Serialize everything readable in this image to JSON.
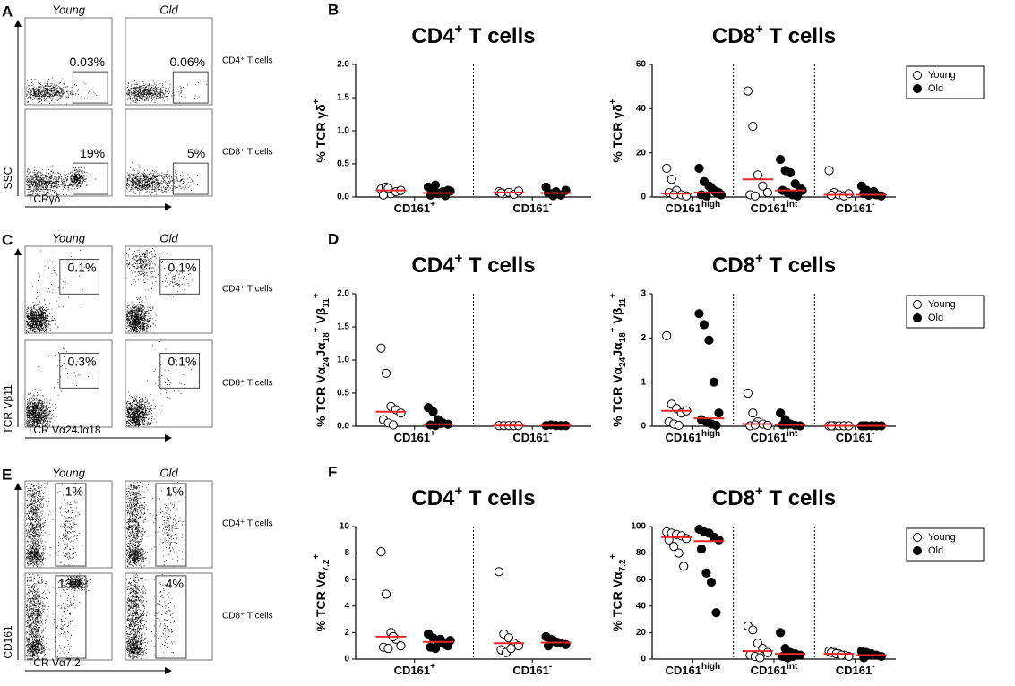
{
  "chart_data": [
    {
      "type": "dot",
      "panel": "B",
      "title": {
        "main": "CD4",
        "sup": "+",
        "rest": " T cells"
      },
      "ylabel": [
        {
          "t": "% TCR γδ"
        },
        {
          "t": "+",
          "shift": "super"
        }
      ],
      "categories": [
        {
          "text": "CD161",
          "sup": "+"
        },
        {
          "text": "CD161",
          "sup": "-"
        }
      ],
      "ylim": [
        0,
        2
      ],
      "yticks": [
        {
          "value": 0,
          "label": "0.0"
        },
        0.5,
        {
          "value": 1,
          "label": "1.0"
        },
        1.5,
        {
          "value": 2,
          "label": "2.0"
        }
      ],
      "legend": false,
      "median_color": "#e8262a",
      "series": [
        {
          "name": "Young",
          "color": "#000000",
          "filled": false,
          "values": [
            [
              0.12,
              0.15,
              0.05,
              0.08,
              0.1,
              0.03,
              0.13
            ],
            [
              0.08,
              0.05,
              0.07,
              0.04,
              0.09,
              0.06
            ]
          ],
          "medians": [
            0.1,
            0.07
          ]
        },
        {
          "name": "Old",
          "color": "#000000",
          "filled": true,
          "values": [
            [
              0.15,
              0.12,
              0.05,
              0.08,
              0.1,
              0.03,
              0.18,
              0.06,
              0.02,
              0.09
            ],
            [
              0.15,
              0.05,
              0.08,
              0.03,
              0.1,
              0.06,
              0.02
            ]
          ],
          "medians": [
            0.06,
            0.06
          ]
        }
      ]
    },
    {
      "type": "dot",
      "title": {
        "main": "CD8",
        "sup": "+",
        "rest": " T cells"
      },
      "ylabel": [
        {
          "t": "% TCR γδ"
        },
        {
          "t": "+",
          "shift": "super"
        }
      ],
      "categories": [
        {
          "text": "CD161",
          "sup": "high"
        },
        {
          "text": "CD161",
          "sup": "int"
        },
        {
          "text": "CD161",
          "sup": "-"
        }
      ],
      "ylim": [
        0,
        60
      ],
      "yticks": [
        0,
        20,
        40,
        60
      ],
      "legend": true,
      "median_color": "#e8262a",
      "series": [
        {
          "name": "Young",
          "color": "#000000",
          "filled": false,
          "values": [
            [
              13,
              8,
              3,
              1,
              0.5,
              2,
              1
            ],
            [
              48,
              32,
              10,
              5,
              2,
              1,
              0.5
            ],
            [
              12,
              2,
              1,
              0.5,
              1.5,
              0.8
            ]
          ],
          "medians": [
            1.5,
            8,
            1
          ]
        },
        {
          "name": "Old",
          "color": "#000000",
          "filled": true,
          "values": [
            [
              13,
              7,
              5,
              3,
              2,
              1,
              0.5,
              4,
              2,
              1
            ],
            [
              17,
              12,
              11,
              6,
              4,
              3,
              2,
              1,
              0.5,
              3
            ],
            [
              5,
              3,
              2,
              1,
              0.5,
              1.5,
              0.8,
              2.5
            ]
          ],
          "medians": [
            2,
            3,
            1
          ]
        }
      ]
    },
    {
      "type": "dot",
      "panel": "D",
      "title": {
        "main": "CD4",
        "sup": "+",
        "rest": " T cells"
      },
      "ylabel": [
        {
          "t": "% TCR Vα"
        },
        {
          "t": "24",
          "shift": "sub"
        },
        {
          "t": "Jα"
        },
        {
          "t": "18",
          "shift": "sub"
        },
        {
          "t": "+",
          "shift": "super"
        },
        {
          "t": " Vβ"
        },
        {
          "t": "11",
          "shift": "sub"
        },
        {
          "t": "+",
          "shift": "super"
        }
      ],
      "categories": [
        {
          "text": "CD161",
          "sup": "+"
        },
        {
          "text": "CD161",
          "sup": "-"
        }
      ],
      "ylim": [
        0,
        2
      ],
      "yticks": [
        {
          "value": 0,
          "label": "0.0"
        },
        0.5,
        {
          "value": 1,
          "label": "1.0"
        },
        1.5,
        {
          "value": 2,
          "label": "2.0"
        }
      ],
      "legend": false,
      "median_color": "#e8262a",
      "series": [
        {
          "name": "Young",
          "color": "#000000",
          "filled": false,
          "values": [
            [
              1.18,
              0.8,
              0.3,
              0.25,
              0.2,
              0.1,
              0.05,
              0.02
            ],
            [
              0.01,
              0.01,
              0.01,
              0.01,
              0.01
            ]
          ],
          "medians": [
            0.22,
            0.01
          ]
        },
        {
          "name": "Old",
          "color": "#000000",
          "filled": true,
          "values": [
            [
              0.28,
              0.22,
              0.1,
              0.05,
              0.03,
              0.02,
              0.01,
              0.04
            ],
            [
              0.01,
              0.02,
              0.01,
              0.01,
              0.01
            ]
          ],
          "medians": [
            0.03,
            0.01
          ]
        }
      ]
    },
    {
      "type": "dot",
      "title": {
        "main": "CD8",
        "sup": "+",
        "rest": " T cells"
      },
      "ylabel": [
        {
          "t": "% TCR Vα"
        },
        {
          "t": "24",
          "shift": "sub"
        },
        {
          "t": "Jα"
        },
        {
          "t": "18",
          "shift": "sub"
        },
        {
          "t": "+",
          "shift": "super"
        },
        {
          "t": " Vβ"
        },
        {
          "t": "11",
          "shift": "sub"
        },
        {
          "t": "+",
          "shift": "super"
        }
      ],
      "categories": [
        {
          "text": "CD161",
          "sup": "high"
        },
        {
          "text": "CD161",
          "sup": "int"
        },
        {
          "text": "CD161",
          "sup": "-"
        }
      ],
      "ylim": [
        0,
        3
      ],
      "yticks": [
        0,
        1,
        2,
        3
      ],
      "legend": true,
      "median_color": "#e8262a",
      "series": [
        {
          "name": "Young",
          "color": "#000000",
          "filled": false,
          "values": [
            [
              2.05,
              0.5,
              0.4,
              0.3,
              0.35,
              0.1,
              0.05,
              0.02
            ],
            [
              0.75,
              0.3,
              0.1,
              0.05,
              0.02,
              0.01,
              0.03
            ],
            [
              0.01,
              0.01,
              0.01,
              0.01,
              0.01,
              0.01
            ]
          ],
          "medians": [
            0.35,
            0.05,
            0.01
          ]
        },
        {
          "name": "Old",
          "color": "#000000",
          "filled": true,
          "values": [
            [
              2.55,
              2.3,
              1.95,
              1.0,
              0.3,
              0.15,
              0.1,
              0.05,
              0.02
            ],
            [
              0.3,
              0.15,
              0.05,
              0.02,
              0.01,
              0.03,
              0.04
            ],
            [
              0.01,
              0.01,
              0.01,
              0.01,
              0.01,
              0.01
            ]
          ],
          "medians": [
            0.18,
            0.03,
            0.01
          ]
        }
      ]
    },
    {
      "type": "dot",
      "panel": "F",
      "title": {
        "main": "CD4",
        "sup": "+",
        "rest": " T cells"
      },
      "ylabel": [
        {
          "t": "% TCR Vα"
        },
        {
          "t": "7.2",
          "shift": "sub"
        },
        {
          "t": "+",
          "shift": "super"
        }
      ],
      "categories": [
        {
          "text": "CD161",
          "sup": "+"
        },
        {
          "text": "CD161",
          "sup": "-"
        }
      ],
      "ylim": [
        0,
        10
      ],
      "yticks": [
        0,
        2,
        4,
        6,
        8,
        10
      ],
      "legend": false,
      "median_color": "#e8262a",
      "series": [
        {
          "name": "Young",
          "color": "#000000",
          "filled": false,
          "values": [
            [
              8.1,
              4.9,
              2,
              1.5,
              1,
              0.9,
              0.8,
              1.7
            ],
            [
              6.6,
              1.9,
              1.6,
              1.2,
              1,
              0.7,
              0.5,
              0.8
            ]
          ],
          "medians": [
            1.7,
            1.2
          ]
        },
        {
          "name": "Old",
          "color": "#000000",
          "filled": true,
          "values": [
            [
              1.9,
              1.6,
              1.3,
              1.2,
              1,
              0.9,
              0.8,
              1.5,
              1.1,
              1.4
            ],
            [
              1.7,
              1.5,
              1.3,
              1.2,
              1.1,
              1.0,
              1.4,
              1.25
            ]
          ],
          "medians": [
            1.3,
            1.25
          ]
        }
      ]
    },
    {
      "type": "dot",
      "title": {
        "main": "CD8",
        "sup": "+",
        "rest": " T cells"
      },
      "ylabel": [
        {
          "t": "% TCR Vα"
        },
        {
          "t": "7.2",
          "shift": "sub"
        },
        {
          "t": "+",
          "shift": "super"
        }
      ],
      "categories": [
        {
          "text": "CD161",
          "sup": "high"
        },
        {
          "text": "CD161",
          "sup": "int"
        },
        {
          "text": "CD161",
          "sup": "-"
        }
      ],
      "ylim": [
        0,
        100
      ],
      "yticks": [
        0,
        20,
        40,
        60,
        80,
        100
      ],
      "legend": true,
      "median_color": "#e8262a",
      "series": [
        {
          "name": "Young",
          "color": "#000000",
          "filled": false,
          "values": [
            [
              96,
              95,
              94,
              93,
              91,
              90,
              85,
              80,
              70
            ],
            [
              25,
              22,
              12,
              8,
              5,
              3,
              2,
              1
            ],
            [
              6,
              5,
              4,
              3,
              2,
              5,
              4,
              3
            ]
          ],
          "medians": [
            92,
            6,
            4
          ]
        },
        {
          "name": "Old",
          "color": "#000000",
          "filled": true,
          "values": [
            [
              98,
              96,
              95,
              92,
              90,
              83,
              65,
              58,
              35
            ],
            [
              20,
              8,
              5,
              4,
              3,
              2,
              1,
              2
            ],
            [
              6,
              5,
              4,
              3,
              2,
              1,
              3
            ]
          ],
          "medians": [
            89,
            4,
            3
          ]
        }
      ]
    }
  ],
  "flow_panels": [
    {
      "letter": "A",
      "columns": [
        "Young",
        "Old"
      ],
      "rows": [
        "CD4⁺ T cells",
        "CD8⁺ T cells"
      ],
      "gates": [
        [
          "0.03%",
          "0.06%"
        ],
        [
          "19%",
          "5%"
        ]
      ],
      "xlabel": "TCRγδ",
      "ylabel": "SSC"
    },
    {
      "letter": "C",
      "columns": [
        "Young",
        "Old"
      ],
      "rows": [
        "CD4⁺ T cells",
        "CD8⁺ T cells"
      ],
      "gates": [
        [
          "0.1%",
          "0.1%"
        ],
        [
          "0.3%",
          "0.1%"
        ]
      ],
      "xlabel": "TCR Vα24Jα18",
      "ylabel": "TCR Vβ11"
    },
    {
      "letter": "E",
      "columns": [
        "Young",
        "Old"
      ],
      "rows": [
        "CD4⁺ T cells",
        "CD8⁺ T cells"
      ],
      "gates": [
        [
          "1%",
          "1%"
        ],
        [
          "13%",
          "4%"
        ]
      ],
      "xlabel": "TCR Vα7.2",
      "ylabel": "CD161"
    }
  ]
}
